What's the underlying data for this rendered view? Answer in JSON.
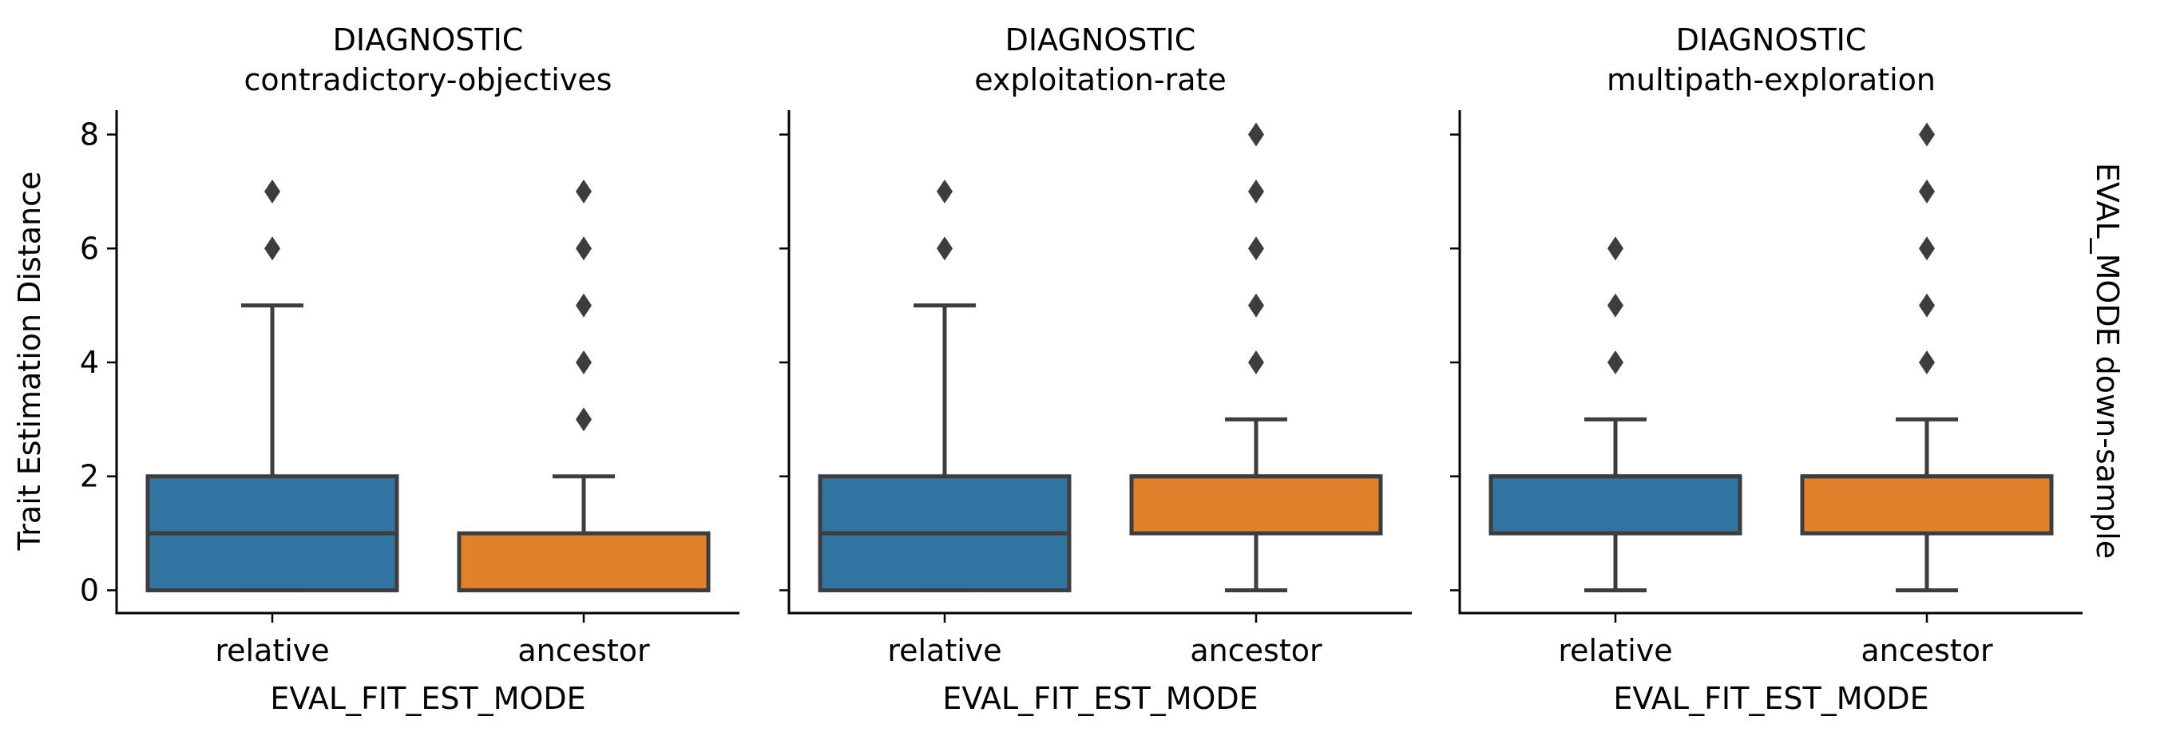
{
  "chart_data": {
    "type": "box",
    "ylabel": "Trait Estimation Distance",
    "row_label": "EVAL_MODE down-sample",
    "ylim": [
      -0.4,
      8.4
    ],
    "yticks": [
      0,
      2,
      4,
      6,
      8
    ],
    "sharey": true,
    "grid": false,
    "colors": {
      "relative": "#3274a1",
      "ancestor": "#e1812c",
      "edge": "#3d3d3d"
    },
    "facets": [
      {
        "title_line1": "DIAGNOSTIC",
        "title_line2": "contradictory-objectives",
        "xlabel": "EVAL_FIT_EST_MODE",
        "categories": [
          "relative",
          "ancestor"
        ],
        "boxes": [
          {
            "category": "relative",
            "whisker_low": 0,
            "q1": 0,
            "median": 1,
            "q3": 2,
            "whisker_high": 5,
            "outliers": [
              6,
              7
            ]
          },
          {
            "category": "ancestor",
            "whisker_low": 0,
            "q1": 0,
            "median": 0,
            "q3": 1,
            "whisker_high": 2,
            "outliers": [
              3,
              4,
              5,
              6,
              7
            ]
          }
        ]
      },
      {
        "title_line1": "DIAGNOSTIC",
        "title_line2": "exploitation-rate",
        "xlabel": "EVAL_FIT_EST_MODE",
        "categories": [
          "relative",
          "ancestor"
        ],
        "boxes": [
          {
            "category": "relative",
            "whisker_low": 0,
            "q1": 0,
            "median": 1,
            "q3": 2,
            "whisker_high": 5,
            "outliers": [
              6,
              7
            ]
          },
          {
            "category": "ancestor",
            "whisker_low": 0,
            "q1": 1,
            "median": 2,
            "q3": 2,
            "whisker_high": 3,
            "outliers": [
              4,
              5,
              6,
              7,
              8
            ]
          }
        ]
      },
      {
        "title_line1": "DIAGNOSTIC",
        "title_line2": "multipath-exploration",
        "xlabel": "EVAL_FIT_EST_MODE",
        "categories": [
          "relative",
          "ancestor"
        ],
        "boxes": [
          {
            "category": "relative",
            "whisker_low": 0,
            "q1": 1,
            "median": 2,
            "q3": 2,
            "whisker_high": 3,
            "outliers": [
              4,
              5,
              6
            ]
          },
          {
            "category": "ancestor",
            "whisker_low": 0,
            "q1": 1,
            "median": 2,
            "q3": 2,
            "whisker_high": 3,
            "outliers": [
              4,
              5,
              6,
              7,
              8
            ]
          }
        ]
      }
    ]
  }
}
